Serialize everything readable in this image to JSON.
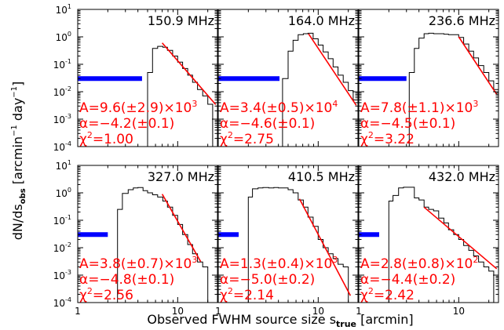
{
  "figure": {
    "ylabel": "dN/ds_obs [arcmin^-1 day^-1]",
    "xlabel": "Observed FWHM source size s_true [arcmin]"
  },
  "chart_data": {
    "type": "line",
    "x_scale": "log",
    "y_scale": "log",
    "xlim": [
      1,
      25
    ],
    "ylim": [
      0.0001,
      10
    ],
    "x_ticks": [
      {
        "v": 1,
        "label": "1"
      },
      {
        "v": 10,
        "label": "10"
      }
    ],
    "y_ticks": [
      {
        "v": 0.0001,
        "label": "10^-4"
      },
      {
        "v": 0.001,
        "label": "10^-3"
      },
      {
        "v": 0.01,
        "label": "10^-2"
      },
      {
        "v": 0.1,
        "label": "10^-1"
      },
      {
        "v": 1,
        "label": "10^0"
      },
      {
        "v": 10,
        "label": "10^1"
      }
    ],
    "colors": {
      "histogram": "#000000",
      "fit": "#ff0000",
      "beam": "#0000ff",
      "text": "#ff0000"
    },
    "panels": [
      {
        "frequency": "150.9 MHz",
        "fit": {
          "A": "9.6(±2.9)×10",
          "A_exp": "3",
          "alpha": "−4.2(±0.1)",
          "chi2": "1.00",
          "x0": 7,
          "y0": 0.6,
          "x1": 24,
          "y1": 0.0034
        },
        "beam": [
          1,
          4.4
        ],
        "histogram": [
          [
            4.4,
            0.0001
          ],
          [
            5.0,
            0.05
          ],
          [
            5.6,
            0.38
          ],
          [
            6.3,
            0.45
          ],
          [
            7.1,
            0.42
          ],
          [
            7.9,
            0.32
          ],
          [
            8.9,
            0.2
          ],
          [
            10,
            0.12
          ],
          [
            11.2,
            0.07
          ],
          [
            12.6,
            0.04
          ],
          [
            14.1,
            0.022
          ],
          [
            15.8,
            0.012
          ],
          [
            17.8,
            0.007
          ],
          [
            20,
            0.0035
          ],
          [
            22.4,
            0.0001
          ],
          [
            25,
            0.0001
          ]
        ]
      },
      {
        "frequency": "164.0 MHz",
        "fit": {
          "A": "3.4(±0.5)×10",
          "A_exp": "4",
          "alpha": "−4.6(±0.1)",
          "chi2": "2.75",
          "x0": 8,
          "y0": 1.3,
          "x1": 24,
          "y1": 0.0032
        },
        "beam": [
          1,
          4.1
        ],
        "histogram": [
          [
            4.1,
            0.0001
          ],
          [
            4.4,
            0.03
          ],
          [
            5.0,
            0.3
          ],
          [
            5.6,
            0.75
          ],
          [
            6.3,
            1.2
          ],
          [
            7.1,
            1.3
          ],
          [
            7.9,
            1.35
          ],
          [
            8.9,
            0.85
          ],
          [
            10,
            0.5
          ],
          [
            11.2,
            0.28
          ],
          [
            12.6,
            0.16
          ],
          [
            14.1,
            0.08
          ],
          [
            15.8,
            0.04
          ],
          [
            17.8,
            0.022
          ],
          [
            20,
            0.011
          ],
          [
            22.4,
            0.005
          ],
          [
            25,
            0.0001
          ]
        ]
      },
      {
        "frequency": "236.6 MHz",
        "fit": {
          "A": "7.8(±1.1)×10",
          "A_exp": "3",
          "alpha": "−4.5(±0.1)",
          "chi2": "3.22",
          "x0": 10,
          "y0": 1.0,
          "x1": 24,
          "y1": 0.008
        },
        "beam": [
          1,
          3.0
        ],
        "histogram": [
          [
            3.0,
            0.0001
          ],
          [
            3.2,
            0.05
          ],
          [
            3.6,
            0.38
          ],
          [
            4.0,
            0.9
          ],
          [
            4.5,
            1.3
          ],
          [
            5.0,
            1.35
          ],
          [
            5.6,
            1.3
          ],
          [
            6.3,
            1.3
          ],
          [
            7.1,
            1.25
          ],
          [
            7.9,
            1.2
          ],
          [
            8.9,
            1.2
          ],
          [
            10,
            0.95
          ],
          [
            11.2,
            0.55
          ],
          [
            12.6,
            0.3
          ],
          [
            14.1,
            0.17
          ],
          [
            15.8,
            0.09
          ],
          [
            17.8,
            0.05
          ],
          [
            20,
            0.025
          ],
          [
            22.4,
            0.012
          ],
          [
            25,
            0.0001
          ]
        ]
      },
      {
        "frequency": "327.0 MHz",
        "fit": {
          "A": "3.8(±0.7)×10",
          "A_exp": "3",
          "alpha": "−4.8(±0.1)",
          "chi2": "2.56",
          "x0": 7,
          "y0": 0.9,
          "x1": 17,
          "y1": 0.0031
        },
        "beam": [
          1,
          2.0
        ],
        "histogram": [
          [
            2.4,
            0.0001
          ],
          [
            2.5,
            0.25
          ],
          [
            2.8,
            0.95
          ],
          [
            3.2,
            1.3
          ],
          [
            3.6,
            1.5
          ],
          [
            4.0,
            1.55
          ],
          [
            4.5,
            1.2
          ],
          [
            5.0,
            1.0
          ],
          [
            5.6,
            0.85
          ],
          [
            6.3,
            0.7
          ],
          [
            7.1,
            0.5
          ],
          [
            7.9,
            0.3
          ],
          [
            8.9,
            0.15
          ],
          [
            10,
            0.07
          ],
          [
            11.2,
            0.03
          ],
          [
            12.6,
            0.013
          ],
          [
            14.1,
            0.006
          ],
          [
            15.8,
            0.003
          ],
          [
            17.8,
            0.002
          ],
          [
            20,
            0.0001
          ]
        ]
      },
      {
        "frequency": "410.5 MHz",
        "fit": {
          "A": "1.3(±0.4)×10",
          "A_exp": "3",
          "alpha": "−5.0(±0.2)",
          "chi2": "2.14",
          "x0": 6.5,
          "y0": 0.6,
          "x1": 21,
          "y1": 0.00018
        },
        "beam": [
          1,
          1.6
        ],
        "histogram": [
          [
            1.9,
            0.0001
          ],
          [
            2.0,
            0.7
          ],
          [
            2.2,
            1.4
          ],
          [
            2.5,
            1.5
          ],
          [
            2.8,
            1.55
          ],
          [
            3.2,
            1.5
          ],
          [
            3.6,
            1.55
          ],
          [
            4.0,
            1.5
          ],
          [
            4.5,
            1.5
          ],
          [
            5.0,
            1.3
          ],
          [
            5.6,
            1.0
          ],
          [
            6.3,
            0.55
          ],
          [
            7.1,
            0.3
          ],
          [
            7.9,
            0.13
          ],
          [
            8.9,
            0.06
          ],
          [
            10,
            0.02
          ],
          [
            11.2,
            0.01
          ],
          [
            12.6,
            0.006
          ],
          [
            14.1,
            0.004
          ],
          [
            15.8,
            0.0025
          ],
          [
            17.8,
            0.002
          ],
          [
            20,
            0.0001
          ]
        ]
      },
      {
        "frequency": "432.0 MHz",
        "fit": {
          "A": "2.8(±0.8)×10",
          "A_exp": "2",
          "alpha": "−4.4(±0.2)",
          "chi2": "2.42",
          "x0": 4.5,
          "y0": 0.3,
          "x1": 24,
          "y1": 0.0017
        },
        "beam": [
          1,
          1.6
        ],
        "histogram": [
          [
            1.9,
            0.0001
          ],
          [
            2.0,
            0.5
          ],
          [
            2.2,
            0.8
          ],
          [
            2.5,
            1.5
          ],
          [
            2.8,
            1.6
          ],
          [
            3.2,
            1.6
          ],
          [
            3.6,
            0.65
          ],
          [
            4.0,
            0.55
          ],
          [
            4.5,
            0.3
          ],
          [
            5.0,
            0.25
          ],
          [
            5.6,
            0.22
          ],
          [
            6.3,
            0.12
          ],
          [
            7.1,
            0.08
          ],
          [
            7.9,
            0.045
          ],
          [
            8.9,
            0.03
          ],
          [
            10,
            0.02
          ],
          [
            11.2,
            0.012
          ],
          [
            12.6,
            0.008
          ],
          [
            14.1,
            0.005
          ],
          [
            15.8,
            0.003
          ],
          [
            17.8,
            0.002
          ],
          [
            20,
            0.0014
          ],
          [
            22.4,
            0.0001
          ]
        ]
      }
    ]
  }
}
